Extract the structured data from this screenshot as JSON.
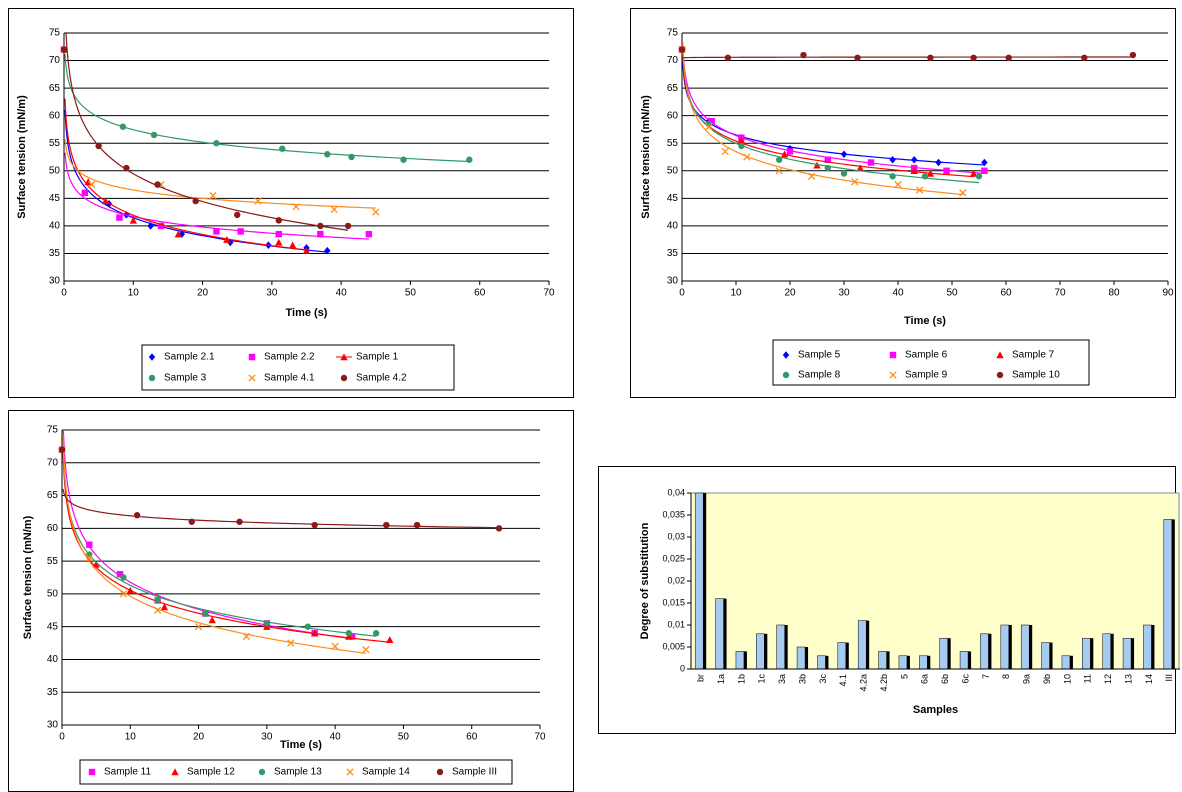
{
  "chart_data": [
    {
      "type": "scatter",
      "xlabel": "Time (s)",
      "ylabel": "Surface tension (mN/m)",
      "xlim": [
        0,
        70
      ],
      "xticks": [
        0,
        10,
        20,
        30,
        40,
        50,
        60,
        70
      ],
      "ylim": [
        30,
        75
      ],
      "yticks": [
        30,
        35,
        40,
        45,
        50,
        55,
        60,
        65,
        70,
        75
      ],
      "grid": true,
      "trendline": "log",
      "series": [
        {
          "name": "Sample 2.1",
          "color": "#0000ff",
          "marker": "diamond",
          "x": [
            0,
            6.5,
            9,
            12.5,
            17,
            24,
            29.5,
            35,
            38
          ],
          "values": [
            72,
            44,
            42,
            40,
            38.5,
            37,
            36.5,
            36,
            35.5
          ]
        },
        {
          "name": "Sample 2.2",
          "color": "#ff00ff",
          "marker": "square",
          "x": [
            0,
            3,
            8,
            14,
            22,
            25.5,
            31,
            37,
            44
          ],
          "values": [
            72,
            46,
            41.5,
            40,
            39,
            39,
            38.5,
            38.5,
            38.5
          ]
        },
        {
          "name": "Sample 1",
          "color": "#ff0000",
          "marker": "triangle",
          "x": [
            0,
            3.5,
            6,
            10,
            16.5,
            23.5,
            31,
            33,
            35
          ],
          "values": [
            72,
            48,
            44.5,
            41,
            38.5,
            37.5,
            37,
            36.5,
            35.5
          ]
        },
        {
          "name": "Sample 3",
          "color": "#339966",
          "marker": "circle",
          "x": [
            0,
            8.5,
            13,
            22,
            31.5,
            38,
            41.5,
            49,
            58.5
          ],
          "values": [
            72,
            58,
            56.5,
            55,
            54,
            53,
            52.5,
            52,
            52
          ]
        },
        {
          "name": "Sample 4.1",
          "color": "#ff8c1a",
          "marker": "x",
          "x": [
            0,
            4,
            14,
            21.5,
            28,
            33.5,
            39,
            45
          ],
          "values": [
            72,
            47.5,
            47.5,
            45.5,
            44.5,
            43.5,
            43,
            42.5
          ]
        },
        {
          "name": "Sample 4.2",
          "color": "#8b1a1a",
          "marker": "circle",
          "x": [
            0,
            5,
            9,
            13.5,
            19,
            25,
            31,
            37,
            41
          ],
          "values": [
            72,
            54.5,
            50.5,
            47.5,
            44.5,
            42,
            41,
            40,
            40
          ]
        }
      ]
    },
    {
      "type": "scatter",
      "xlabel": "Time (s)",
      "ylabel": "Surface tension (mN/m)",
      "xlim": [
        0,
        90
      ],
      "xticks": [
        0,
        10,
        20,
        30,
        40,
        50,
        60,
        70,
        80,
        90
      ],
      "ylim": [
        30,
        75
      ],
      "yticks": [
        30,
        35,
        40,
        45,
        50,
        55,
        60,
        65,
        70,
        75
      ],
      "grid": true,
      "trendline": "log",
      "series": [
        {
          "name": "Sample 5",
          "color": "#0000ff",
          "marker": "diamond",
          "x": [
            0,
            5,
            11,
            20,
            30,
            39,
            43,
            47.5,
            56
          ],
          "values": [
            72,
            59,
            56,
            54,
            53,
            52,
            52,
            51.5,
            51.5
          ]
        },
        {
          "name": "Sample 6",
          "color": "#ff00ff",
          "marker": "square",
          "x": [
            0,
            5.5,
            11,
            20,
            27,
            35,
            43,
            49,
            56
          ],
          "values": [
            72,
            59,
            56,
            53.5,
            52,
            51.5,
            50.5,
            50,
            50
          ]
        },
        {
          "name": "Sample 7",
          "color": "#ff0000",
          "marker": "triangle",
          "x": [
            0,
            11,
            19,
            25,
            33,
            43,
            46,
            54
          ],
          "values": [
            72,
            55.5,
            53,
            51,
            50.5,
            50,
            49.5,
            49.5
          ]
        },
        {
          "name": "Sample 8",
          "color": "#339966",
          "marker": "circle",
          "x": [
            0,
            5,
            11,
            18,
            27,
            30,
            39,
            45,
            55
          ],
          "values": [
            72,
            58.5,
            54.5,
            52,
            50.5,
            49.5,
            49,
            49,
            49
          ]
        },
        {
          "name": "Sample 9",
          "color": "#ff8c1a",
          "marker": "x",
          "x": [
            0,
            5,
            8,
            12,
            18,
            24,
            32,
            40,
            44,
            52
          ],
          "values": [
            72,
            58,
            53.5,
            52.5,
            50,
            49,
            48,
            47.5,
            46.5,
            46
          ]
        },
        {
          "name": "Sample 10",
          "color": "#8b1a1a",
          "marker": "circle",
          "x": [
            0,
            8.5,
            22.5,
            32.5,
            46,
            54,
            60.5,
            74.5,
            83.5
          ],
          "values": [
            72,
            70.5,
            71,
            70.5,
            70.5,
            70.5,
            70.5,
            70.5,
            71
          ]
        }
      ]
    },
    {
      "type": "scatter",
      "xlabel": "Time (s)",
      "ylabel": "Surface tension (mN/m)",
      "xlim": [
        0,
        70
      ],
      "xticks": [
        0,
        10,
        20,
        30,
        40,
        50,
        60,
        70
      ],
      "ylim": [
        30,
        75
      ],
      "yticks": [
        30,
        35,
        40,
        45,
        50,
        55,
        60,
        65,
        70,
        75
      ],
      "grid": true,
      "trendline": "log",
      "series": [
        {
          "name": "Sample 11",
          "color": "#ff00ff",
          "marker": "square",
          "x": [
            0,
            4,
            8.5,
            14,
            21,
            30,
            37,
            42.5
          ],
          "values": [
            72,
            57.5,
            53,
            49,
            47,
            45.5,
            44,
            43.5
          ]
        },
        {
          "name": "Sample 12",
          "color": "#ff0000",
          "marker": "triangle",
          "x": [
            0,
            5,
            10,
            15,
            22,
            30,
            37,
            42,
            48
          ],
          "values": [
            72,
            54.5,
            50.5,
            48,
            46,
            45,
            44,
            43.5,
            43
          ]
        },
        {
          "name": "Sample 13",
          "color": "#339966",
          "marker": "circle",
          "x": [
            0,
            4,
            9,
            14,
            21,
            30,
            36,
            42,
            46
          ],
          "values": [
            72,
            56,
            52.5,
            49,
            47,
            45.5,
            45,
            44,
            44
          ]
        },
        {
          "name": "Sample 14",
          "color": "#ff8c1a",
          "marker": "x",
          "x": [
            0,
            4,
            9,
            14,
            20,
            27,
            33.5,
            40,
            44.5
          ],
          "values": [
            72,
            55.5,
            50,
            47.5,
            45,
            43.5,
            42.5,
            42,
            41.5
          ]
        },
        {
          "name": "Sample III",
          "color": "#8b1a1a",
          "marker": "circle",
          "x": [
            0,
            11,
            19,
            26,
            37,
            47.5,
            52,
            64
          ],
          "values": [
            72,
            62,
            61,
            61,
            60.5,
            60.5,
            60.5,
            60
          ]
        }
      ]
    },
    {
      "type": "bar",
      "xlabel": "Samples",
      "ylabel": "Degree of substitution",
      "color": "#a6caf0",
      "background": "#ffffcc",
      "ylim": [
        0,
        0.04
      ],
      "yticks": [
        0,
        {
          "value": 0.005,
          "label": "0,005"
        },
        {
          "value": 0.01,
          "label": "0,01"
        },
        {
          "value": 0.015,
          "label": "0,015"
        },
        {
          "value": 0.02,
          "label": "0,02"
        },
        {
          "value": 0.025,
          "label": "0,025"
        },
        {
          "value": 0.03,
          "label": "0,03"
        },
        {
          "value": 0.035,
          "label": "0,035"
        },
        {
          "value": 0.04,
          "label": "0,04"
        }
      ],
      "categories": [
        "br",
        "1a",
        "1b",
        "1c",
        "3a",
        "3b",
        "3c",
        "4.1",
        "4.2a",
        "4.2b",
        "5",
        "6a",
        "6b",
        "6c",
        "7",
        "8",
        "9a",
        "9b",
        "10",
        "11",
        "12",
        "13",
        "14",
        "III"
      ],
      "values": [
        0.04,
        0.016,
        0.004,
        0.008,
        0.01,
        0.005,
        0.003,
        0.006,
        0.011,
        0.004,
        0.003,
        0.003,
        0.007,
        0.004,
        0.008,
        0.01,
        0.01,
        0.006,
        0.003,
        0.007,
        0.008,
        0.007,
        0.01,
        0.034
      ]
    }
  ]
}
